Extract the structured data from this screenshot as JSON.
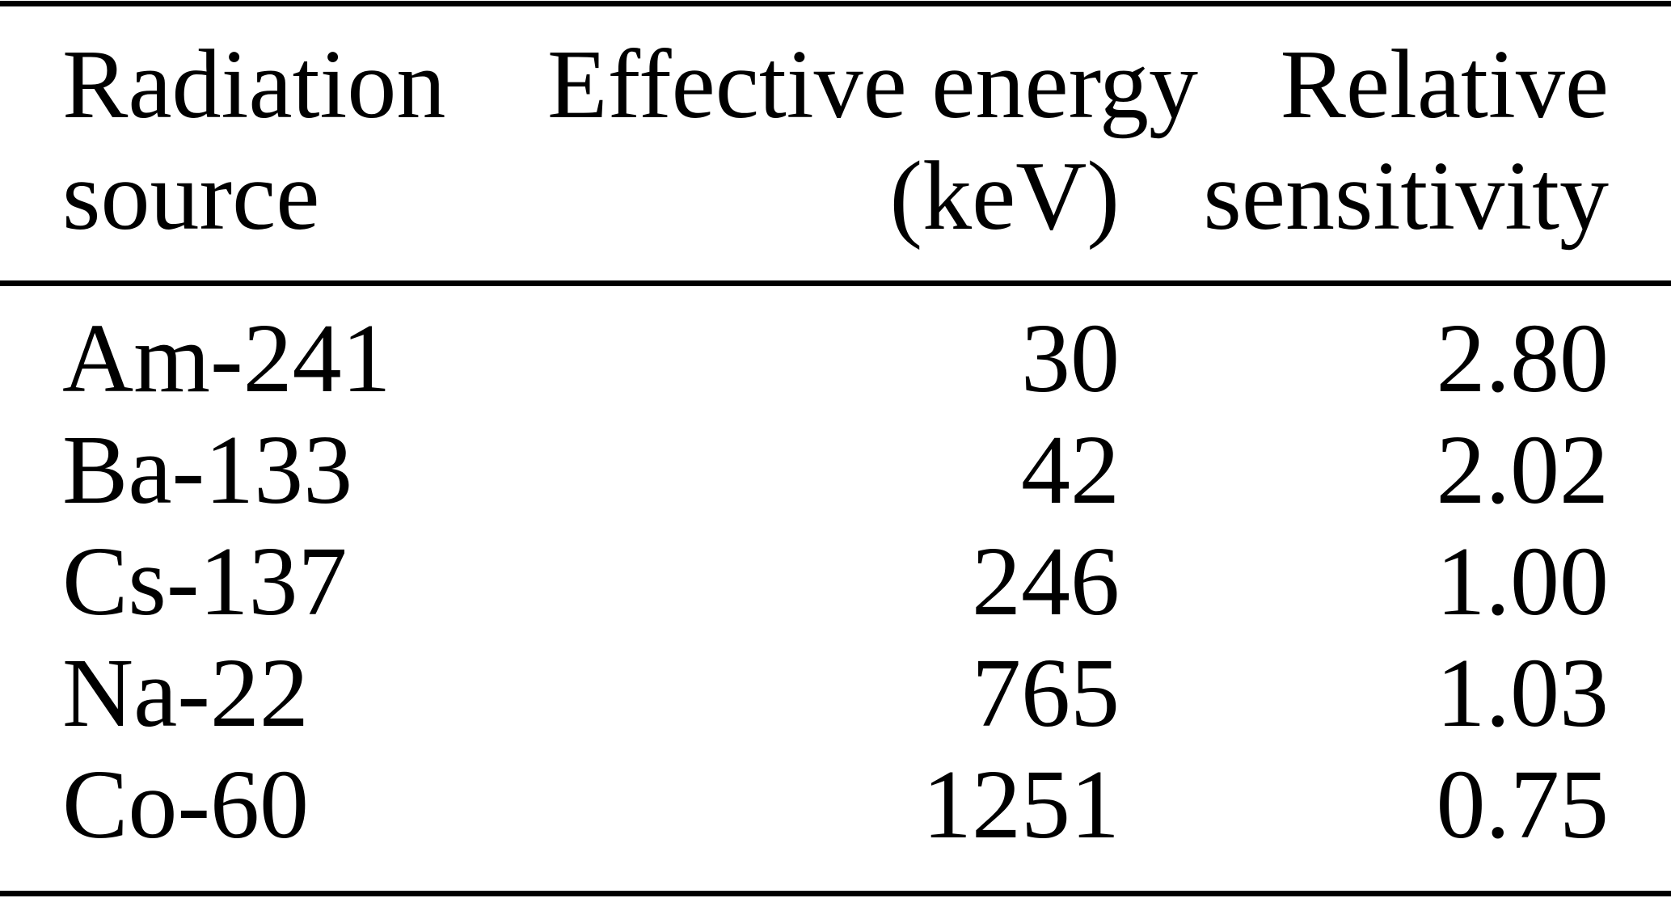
{
  "table": {
    "header": {
      "radiation_line1": "Radiation",
      "radiation_line2": "source",
      "energy_line1": "Effective energy",
      "energy_line2": "(keV)",
      "sensitivity_line1": "Relative",
      "sensitivity_line2": "sensitivity"
    },
    "rows": [
      {
        "source": "Am-241",
        "energy": "30",
        "sensitivity": "2.80"
      },
      {
        "source": "Ba-133",
        "energy": "42",
        "sensitivity": "2.02"
      },
      {
        "source": "Cs-137",
        "energy": "246",
        "sensitivity": "1.00"
      },
      {
        "source": "Na-22",
        "energy": "765",
        "sensitivity": "1.03"
      },
      {
        "source": "Co-60",
        "energy": "1251",
        "sensitivity": "0.75"
      }
    ]
  },
  "colors": {
    "text": "#000000",
    "background": "#ffffff",
    "rule": "#000000"
  },
  "chart_data": {
    "type": "table",
    "columns": [
      "Radiation source",
      "Effective energy (keV)",
      "Relative sensitivity"
    ],
    "rows": [
      [
        "Am-241",
        30,
        2.8
      ],
      [
        "Ba-133",
        42,
        2.02
      ],
      [
        "Cs-137",
        246,
        1.0
      ],
      [
        "Na-22",
        765,
        1.03
      ],
      [
        "Co-60",
        1251,
        0.75
      ]
    ]
  }
}
